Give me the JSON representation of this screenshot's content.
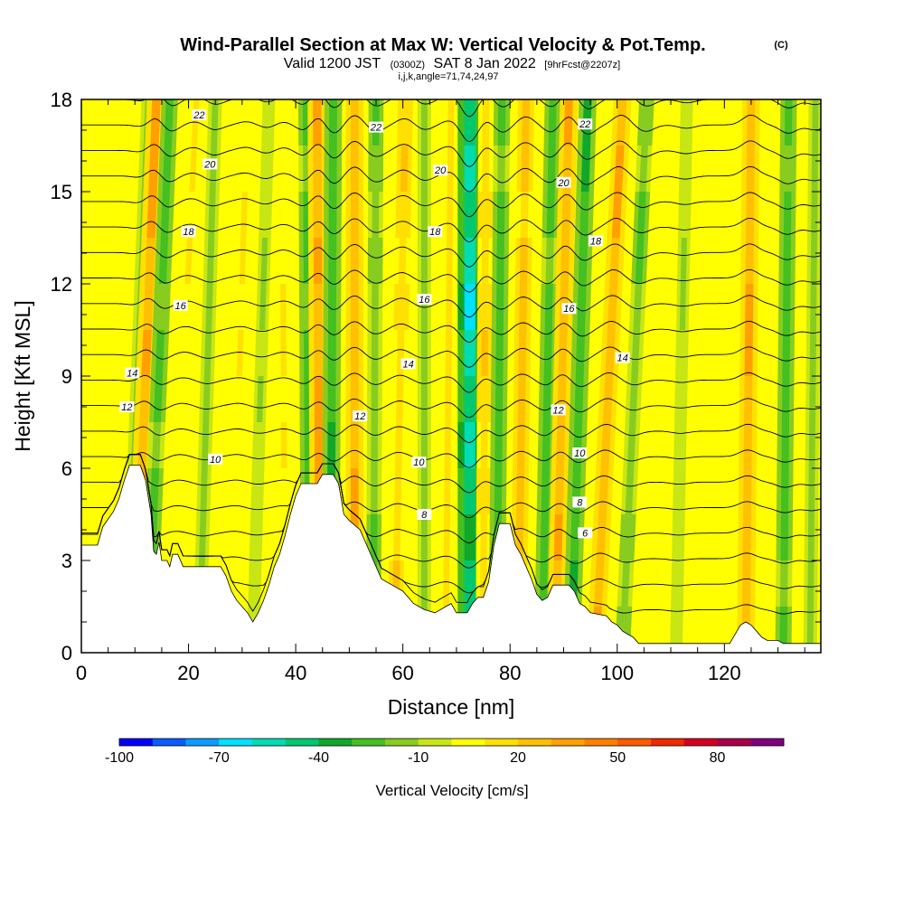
{
  "chart_data": {
    "type": "heatmap",
    "title": "Wind-Parallel Section at Max W: Vertical Velocity & Pot.Temp.",
    "title_tag": "(C)",
    "subtitle_main": "Valid 1200 JST",
    "subtitle_utc": "(0300Z)",
    "subtitle_date": "SAT 8 Jan 2022",
    "subtitle_fcst": "[9hrFcst@2207z]",
    "subtitle_indices": "i,j,k,angle=71,74,24,97",
    "xlabel": "Distance [nm]",
    "ylabel": "Height [Kft MSL]",
    "xlim": [
      0,
      138
    ],
    "ylim": [
      0,
      18
    ],
    "x_ticks": [
      0,
      20,
      40,
      60,
      80,
      100,
      120
    ],
    "y_ticks": [
      0,
      3,
      6,
      9,
      12,
      15,
      18
    ],
    "colorbar": {
      "label": "Vertical Velocity [cm/s]",
      "tick_labels": [
        -100,
        -70,
        -40,
        -10,
        20,
        50,
        80
      ],
      "levels": [
        -100,
        -90,
        -80,
        -70,
        -60,
        -50,
        -40,
        -30,
        -20,
        -10,
        0,
        10,
        20,
        30,
        40,
        50,
        60,
        70,
        80,
        90,
        100
      ],
      "colors": [
        "#0000ff",
        "#0a5cff",
        "#0a9cff",
        "#00e0ff",
        "#00dcb4",
        "#00c870",
        "#10a82a",
        "#44c020",
        "#88cc20",
        "#c8e614",
        "#ffff00",
        "#ffe000",
        "#ffc000",
        "#ffa000",
        "#ff8000",
        "#ff5a00",
        "#f02800",
        "#d40020",
        "#a8004a",
        "#800080"
      ]
    },
    "terrain_height_kft": [
      [
        0,
        3.5
      ],
      [
        3,
        3.5
      ],
      [
        4,
        4.1
      ],
      [
        6,
        4.6
      ],
      [
        7,
        5.0
      ],
      [
        8,
        5.6
      ],
      [
        9,
        6.1
      ],
      [
        11,
        6.1
      ],
      [
        12,
        5.6
      ],
      [
        13,
        4.5
      ],
      [
        13.5,
        3.3
      ],
      [
        14,
        3.2
      ],
      [
        14.5,
        3.6
      ],
      [
        15,
        3.0
      ],
      [
        16,
        3.0
      ],
      [
        16.5,
        2.8
      ],
      [
        17,
        3.2
      ],
      [
        18,
        3.2
      ],
      [
        19,
        2.8
      ],
      [
        22,
        2.8
      ],
      [
        25,
        2.8
      ],
      [
        26,
        2.8
      ],
      [
        27,
        2.5
      ],
      [
        28,
        2.0
      ],
      [
        29,
        1.7
      ],
      [
        30,
        1.5
      ],
      [
        31,
        1.3
      ],
      [
        32,
        1.0
      ],
      [
        33,
        1.3
      ],
      [
        34,
        1.7
      ],
      [
        35,
        2.2
      ],
      [
        36,
        2.8
      ],
      [
        37,
        3.2
      ],
      [
        38,
        3.8
      ],
      [
        39,
        4.5
      ],
      [
        40,
        5.1
      ],
      [
        41,
        5.5
      ],
      [
        42,
        5.5
      ],
      [
        44,
        5.5
      ],
      [
        45,
        5.8
      ],
      [
        47,
        5.8
      ],
      [
        48,
        5.5
      ],
      [
        48.5,
        5.0
      ],
      [
        49,
        4.5
      ],
      [
        50,
        4.3
      ],
      [
        52,
        4.0
      ],
      [
        53,
        3.6
      ],
      [
        54,
        3.2
      ],
      [
        55,
        2.8
      ],
      [
        56,
        2.4
      ],
      [
        58,
        2.2
      ],
      [
        60,
        2.0
      ],
      [
        62,
        1.6
      ],
      [
        64,
        1.4
      ],
      [
        66,
        1.3
      ],
      [
        69,
        1.6
      ],
      [
        70,
        1.3
      ],
      [
        71,
        1.3
      ],
      [
        72,
        1.3
      ],
      [
        73,
        1.6
      ],
      [
        74,
        1.8
      ],
      [
        75,
        1.8
      ],
      [
        76,
        2.3
      ],
      [
        77,
        3.5
      ],
      [
        78,
        4.2
      ],
      [
        80,
        4.2
      ],
      [
        81,
        3.5
      ],
      [
        82,
        3.2
      ],
      [
        83,
        2.8
      ],
      [
        84,
        2.4
      ],
      [
        85,
        1.9
      ],
      [
        86,
        1.7
      ],
      [
        87,
        1.8
      ],
      [
        88,
        2.2
      ],
      [
        89,
        2.2
      ],
      [
        91,
        2.2
      ],
      [
        92,
        2.0
      ],
      [
        93,
        1.6
      ],
      [
        94,
        1.5
      ],
      [
        95,
        1.3
      ],
      [
        98,
        1.2
      ],
      [
        99,
        1.0
      ],
      [
        100,
        0.9
      ],
      [
        101,
        0.7
      ],
      [
        102,
        0.6
      ],
      [
        103,
        0.5
      ],
      [
        104,
        0.3
      ],
      [
        106,
        0.3
      ],
      [
        110,
        0.3
      ],
      [
        118,
        0.3
      ],
      [
        120,
        0.3
      ],
      [
        121,
        0.3
      ],
      [
        122,
        0.6
      ],
      [
        123,
        0.9
      ],
      [
        124,
        1.0
      ],
      [
        125,
        0.9
      ],
      [
        126,
        0.7
      ],
      [
        127,
        0.5
      ],
      [
        128,
        0.4
      ],
      [
        130,
        0.4
      ],
      [
        131,
        0.3
      ],
      [
        138,
        0.3
      ]
    ],
    "updraft_bands": [
      {
        "x_kft0": 8.5,
        "x_top": 12.5,
        "w": -15
      },
      {
        "x_kft0": 10.0,
        "x_top": 14.0,
        "w": 35
      },
      {
        "x_kft0": 12.5,
        "x_top": 16.5,
        "w": -25
      },
      {
        "x_kft0": 16.5,
        "x_top": 21.5,
        "w": 10
      },
      {
        "x_kft0": 22.0,
        "x_top": 25.0,
        "w": -15
      },
      {
        "x_kft0": 28.0,
        "x_top": 31.0,
        "w": 10
      },
      {
        "x_kft0": 32.0,
        "x_top": 35.0,
        "w": -10
      },
      {
        "x_kft0": 38.0,
        "x_top": 37.5,
        "w": 10
      },
      {
        "x_kft0": 42.5,
        "x_top": 42.0,
        "w": -25
      },
      {
        "x_kft0": 44.5,
        "x_top": 44.0,
        "w": 35
      },
      {
        "x_kft0": 46.5,
        "x_top": 47.0,
        "w": -30
      },
      {
        "x_kft0": 51.0,
        "x_top": 51.0,
        "w": 30
      },
      {
        "x_kft0": 54.5,
        "x_top": 55.0,
        "w": -20
      },
      {
        "x_kft0": 58.5,
        "x_top": 60.5,
        "w": 20
      },
      {
        "x_kft0": 64.0,
        "x_top": 64.0,
        "w": -15
      },
      {
        "x_kft0": 68.0,
        "x_top": 69.0,
        "w": 15
      },
      {
        "x_kft0": 72.5,
        "x_top": 72.5,
        "w": -55
      },
      {
        "x_kft0": 75.0,
        "x_top": 75.5,
        "w": 20
      },
      {
        "x_kft0": 77.5,
        "x_top": 78.5,
        "w": -25
      },
      {
        "x_kft0": 81.5,
        "x_top": 83.0,
        "w": 25
      },
      {
        "x_kft0": 86.0,
        "x_top": 88.0,
        "w": -25
      },
      {
        "x_kft0": 88.5,
        "x_top": 91.0,
        "w": 30
      },
      {
        "x_kft0": 91.5,
        "x_top": 94.5,
        "w": -30
      },
      {
        "x_kft0": 96.0,
        "x_top": 101.0,
        "w": 30
      },
      {
        "x_kft0": 101.0,
        "x_top": 105.5,
        "w": -20
      },
      {
        "x_kft0": 111.0,
        "x_top": 113.0,
        "w": -10
      },
      {
        "x_kft0": 124.0,
        "x_top": 125.0,
        "w": 30
      },
      {
        "x_kft0": 131.0,
        "x_top": 132.0,
        "w": -25
      },
      {
        "x_kft0": 136.0,
        "x_top": 137.0,
        "w": -15
      }
    ],
    "pot_temp_contours_C": [
      3,
      4,
      5,
      6,
      7,
      8,
      9,
      10,
      11,
      12,
      13,
      14,
      15,
      16,
      17,
      18,
      19,
      20,
      21,
      22,
      23
    ],
    "pot_temp_labels": [
      {
        "value": "22",
        "x": 22,
        "y": 17.5
      },
      {
        "value": "22",
        "x": 55,
        "y": 17.1
      },
      {
        "value": "22",
        "x": 94,
        "y": 17.2
      },
      {
        "value": "20",
        "x": 24,
        "y": 15.9
      },
      {
        "value": "20",
        "x": 67,
        "y": 15.7
      },
      {
        "value": "20",
        "x": 90,
        "y": 15.3
      },
      {
        "value": "18",
        "x": 20,
        "y": 13.7
      },
      {
        "value": "18",
        "x": 66,
        "y": 13.7
      },
      {
        "value": "18",
        "x": 96,
        "y": 13.4
      },
      {
        "value": "16",
        "x": 18.5,
        "y": 11.3
      },
      {
        "value": "16",
        "x": 64,
        "y": 11.5
      },
      {
        "value": "16",
        "x": 91,
        "y": 11.2
      },
      {
        "value": "14",
        "x": 9.5,
        "y": 9.1
      },
      {
        "value": "14",
        "x": 61,
        "y": 9.4
      },
      {
        "value": "14",
        "x": 101,
        "y": 9.6
      },
      {
        "value": "12",
        "x": 8.5,
        "y": 8.0
      },
      {
        "value": "12",
        "x": 52,
        "y": 7.7
      },
      {
        "value": "12",
        "x": 89,
        "y": 7.9
      },
      {
        "value": "10",
        "x": 25,
        "y": 6.3
      },
      {
        "value": "10",
        "x": 63,
        "y": 6.2
      },
      {
        "value": "10",
        "x": 93,
        "y": 6.5
      },
      {
        "value": "8",
        "x": 64,
        "y": 4.5
      },
      {
        "value": "8",
        "x": 93,
        "y": 4.9
      },
      {
        "value": "6",
        "x": 94,
        "y": 3.9
      }
    ]
  }
}
